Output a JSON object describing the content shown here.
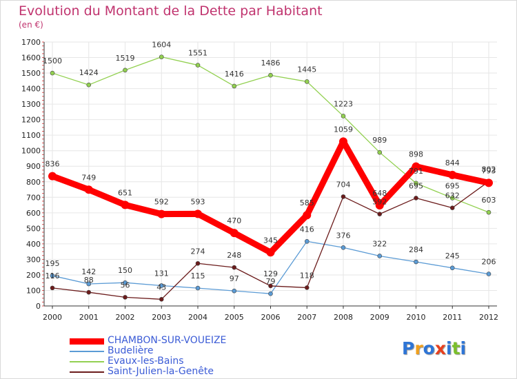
{
  "header": {
    "title": "Evolution du Montant de la Dette par Habitant",
    "subtitle": "(en €)"
  },
  "logo": {
    "text": "Proxiti"
  },
  "chart_data": {
    "type": "line",
    "title": "Evolution du Montant de la Dette par Habitant",
    "subtitle": "(en €)",
    "xlabel": "",
    "ylabel": "",
    "x": [
      "2000",
      "2001",
      "2002",
      "2003",
      "2004",
      "2005",
      "2006",
      "2007",
      "2008",
      "2009",
      "2010",
      "2011",
      "2012"
    ],
    "ylim": [
      0,
      1700
    ],
    "yticks": [
      0,
      100,
      200,
      300,
      400,
      500,
      600,
      700,
      800,
      900,
      1000,
      1100,
      1200,
      1300,
      1400,
      1500,
      1600,
      1700
    ],
    "grid": true,
    "legend_position": "bottom-left",
    "series": [
      {
        "name": "CHAMBON-SUR-VOUEIZE",
        "color": "#ff0000",
        "values": [
          836,
          749,
          651,
          592,
          593,
          470,
          345,
          585,
          1059,
          648,
          898,
          844,
          793
        ]
      },
      {
        "name": "Budelière",
        "color": "#5b9bd5",
        "values": [
          195,
          142,
          150,
          131,
          115,
          97,
          79,
          416,
          376,
          322,
          284,
          245,
          206
        ]
      },
      {
        "name": "Evaux-les-Bains",
        "color": "#92d050",
        "values": [
          1500,
          1424,
          1519,
          1604,
          1551,
          1416,
          1486,
          1445,
          1223,
          989,
          791,
          695,
          603
        ]
      },
      {
        "name": "Saint-Julien-la-Genête",
        "color": "#6b1b1b",
        "values": [
          116,
          88,
          56,
          43,
          274,
          248,
          129,
          118,
          704,
          592,
          695,
          632,
          802
        ]
      }
    ]
  }
}
